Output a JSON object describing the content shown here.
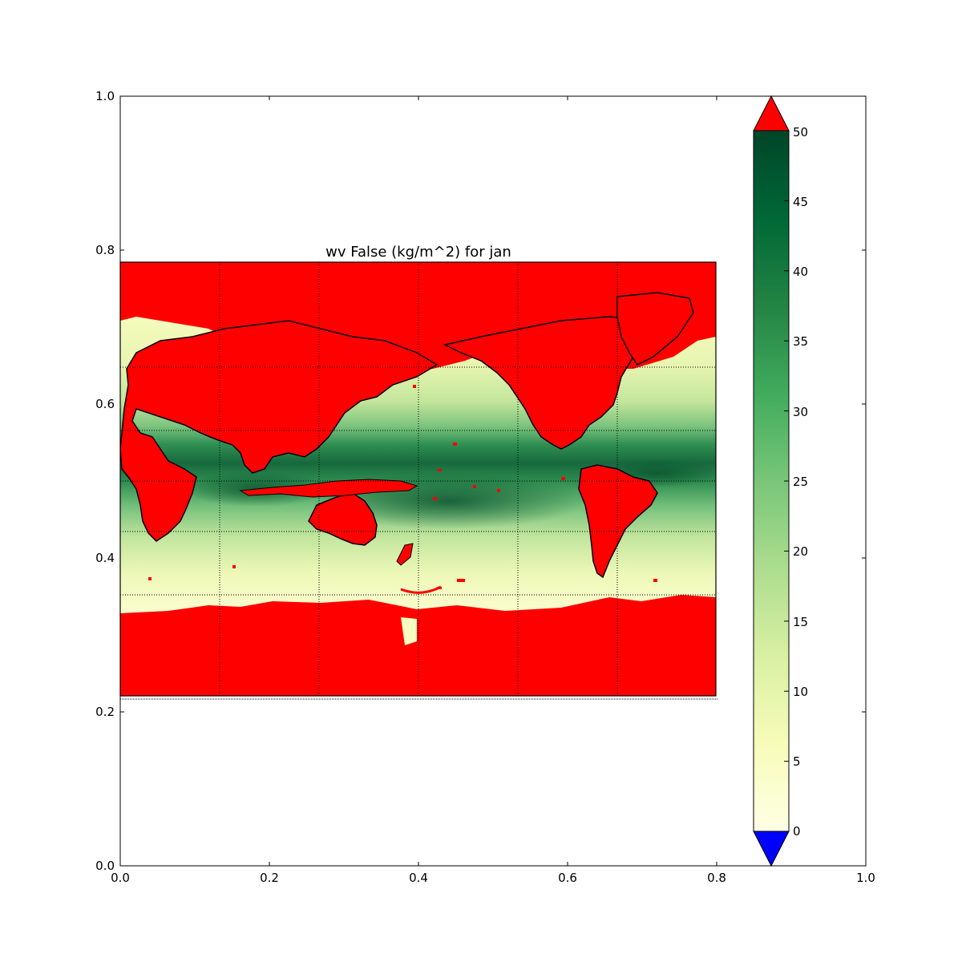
{
  "figure": {
    "map_title": "wv False (kg/m^2) for jan"
  },
  "outer_axes": {
    "x_ticks": [
      "0.0",
      "0.2",
      "0.4",
      "0.6",
      "0.8",
      "1.0"
    ],
    "y_ticks": [
      "0.0",
      "0.2",
      "0.4",
      "0.6",
      "0.8",
      "1.0"
    ]
  },
  "colorbar": {
    "ticks": [
      "0",
      "5",
      "10",
      "15",
      "20",
      "25",
      "30",
      "35",
      "40",
      "45",
      "50"
    ],
    "range": [
      0,
      50
    ],
    "colormap": "YlGn-like",
    "extend_over_color": "#ff0000",
    "extend_under_color": "#0000ff",
    "stops": [
      "#ffffe5",
      "#f7fcb9",
      "#d9f0a3",
      "#addd8e",
      "#78c679",
      "#41ab5d",
      "#238443",
      "#006837",
      "#004529"
    ]
  },
  "map": {
    "masked_color": "#ff0000",
    "coastline_color": "#000000",
    "graticule": "dotted"
  },
  "chart_data": {
    "type": "heatmap",
    "title": "wv False (kg/m^2) for jan",
    "variable": "wv",
    "units": "kg/m^2",
    "month": "jan",
    "value_range": [
      0,
      50
    ],
    "colorbar_ticks": [
      0,
      5,
      10,
      15,
      20,
      25,
      30,
      35,
      40,
      45,
      50
    ],
    "outer_xlim": [
      0.0,
      1.0
    ],
    "outer_ylim": [
      0.0,
      1.0
    ],
    "projection": "cylindrical, Pacific-centered",
    "masked_regions": "land and polar sea ice shown in red (over-range)",
    "field_description": "high water vapor (~40-50) in tropical band near equator, low (~5-15) at mid/high latitudes"
  }
}
